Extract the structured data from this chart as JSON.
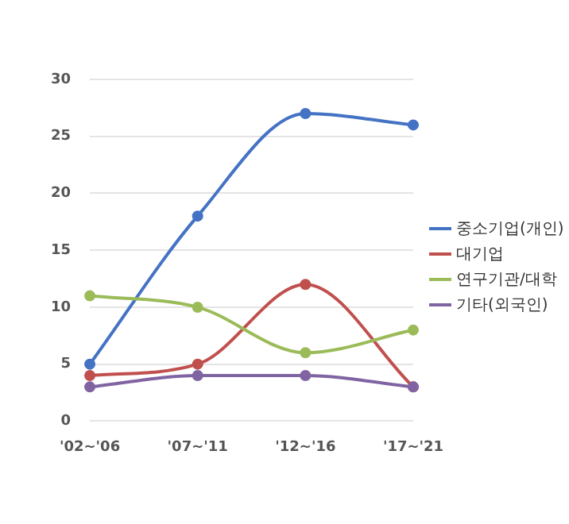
{
  "chart_data": {
    "type": "line",
    "categories": [
      "'02~'06",
      "'07~'11",
      "'12~'16",
      "'17~'21"
    ],
    "series": [
      {
        "name": "중소기업(개인)",
        "color": "#4472c4",
        "values": [
          5,
          18,
          27,
          26
        ]
      },
      {
        "name": "대기업",
        "color": "#c0504d",
        "values": [
          4,
          5,
          12,
          3
        ]
      },
      {
        "name": "연구기관/대학",
        "color": "#9bbb59",
        "values": [
          11,
          10,
          6,
          8
        ]
      },
      {
        "name": "기타(외국인)",
        "color": "#8064a2",
        "values": [
          3,
          4,
          4,
          3
        ]
      }
    ],
    "ylim": [
      0,
      30
    ],
    "yticks": [
      0,
      5,
      10,
      15,
      20,
      25,
      30
    ],
    "grid": "y",
    "legend": "right",
    "marker": "circle"
  }
}
